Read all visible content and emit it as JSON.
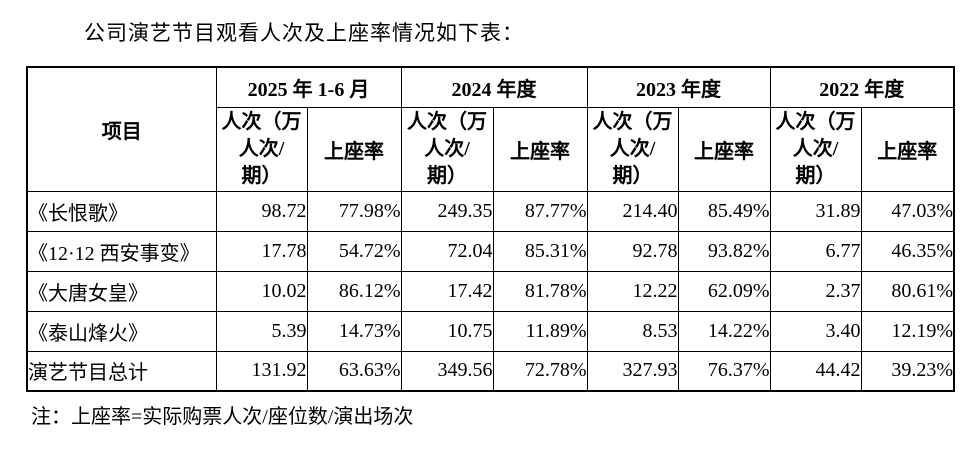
{
  "title": "公司演艺节目观看人次及上座率情况如下表：",
  "note": "注：上座率=实际购票人次/座位数/演出场次",
  "colors": {
    "background": "#ffffff",
    "border": "#000000",
    "text": "#000000"
  },
  "table": {
    "corner_header": "项目",
    "period_headers": [
      "2025 年 1-6 月",
      "2024 年度",
      "2023 年度",
      "2022 年度"
    ],
    "sub_headers": {
      "visitors": "人次（万\n人次/\n期）",
      "occupancy": "上座率"
    },
    "rows": [
      {
        "name": "《长恨歌》",
        "values": [
          "98.72",
          "77.98%",
          "249.35",
          "87.77%",
          "214.40",
          "85.49%",
          "31.89",
          "47.03%"
        ]
      },
      {
        "name": "《12·12 西安事变》",
        "values": [
          "17.78",
          "54.72%",
          "72.04",
          "85.31%",
          "92.78",
          "93.82%",
          "6.77",
          "46.35%"
        ]
      },
      {
        "name": "《大唐女皇》",
        "values": [
          "10.02",
          "86.12%",
          "17.42",
          "81.78%",
          "12.22",
          "62.09%",
          "2.37",
          "80.61%"
        ]
      },
      {
        "name": "《泰山烽火》",
        "values": [
          "5.39",
          "14.73%",
          "10.75",
          "11.89%",
          "8.53",
          "14.22%",
          "3.40",
          "12.19%"
        ]
      },
      {
        "name": "演艺节目总计",
        "values": [
          "131.92",
          "63.63%",
          "349.56",
          "72.78%",
          "327.93",
          "76.37%",
          "44.42",
          "39.23%"
        ]
      }
    ]
  },
  "chart_data": {
    "type": "table",
    "title": "公司演艺节目观看人次及上座率情况如下表：",
    "columns": [
      "项目",
      "2025年1-6月 人次（万人次/期）",
      "2025年1-6月 上座率",
      "2024年度 人次（万人次/期）",
      "2024年度 上座率",
      "2023年度 人次（万人次/期）",
      "2023年度 上座率",
      "2022年度 人次（万人次/期）",
      "2022年度 上座率"
    ],
    "rows": [
      [
        "《长恨歌》",
        98.72,
        "77.98%",
        249.35,
        "87.77%",
        214.4,
        "85.49%",
        31.89,
        "47.03%"
      ],
      [
        "《12·12 西安事变》",
        17.78,
        "54.72%",
        72.04,
        "85.31%",
        92.78,
        "93.82%",
        6.77,
        "46.35%"
      ],
      [
        "《大唐女皇》",
        10.02,
        "86.12%",
        17.42,
        "81.78%",
        12.22,
        "62.09%",
        2.37,
        "80.61%"
      ],
      [
        "《泰山烽火》",
        5.39,
        "14.73%",
        10.75,
        "11.89%",
        8.53,
        "14.22%",
        3.4,
        "12.19%"
      ],
      [
        "演艺节目总计",
        131.92,
        "63.63%",
        349.56,
        "72.78%",
        327.93,
        "76.37%",
        44.42,
        "39.23%"
      ]
    ]
  }
}
